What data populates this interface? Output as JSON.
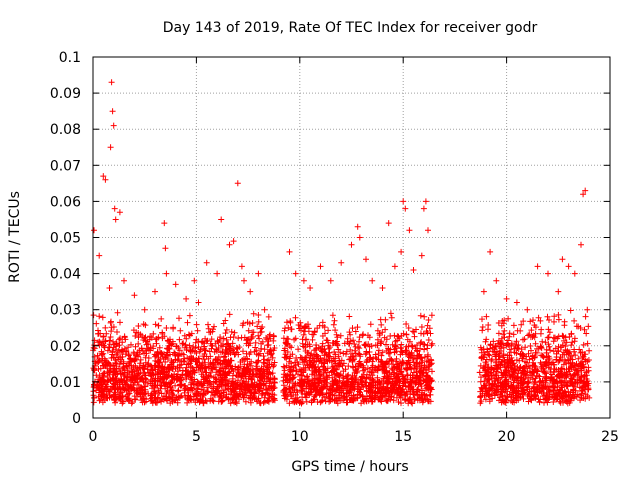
{
  "chart_data": {
    "type": "scatter",
    "title": "Day 143 of 2019, Rate Of TEC Index for receiver godr",
    "xlabel": "GPS time / hours",
    "ylabel": "ROTI / TECUs",
    "xlim": [
      0,
      25
    ],
    "ylim": [
      0,
      0.1
    ],
    "xticks": [
      0,
      5,
      10,
      15,
      20,
      25
    ],
    "xtick_labels": [
      "0",
      "5",
      "10",
      "15",
      "20",
      "25"
    ],
    "yticks": [
      0,
      0.01,
      0.02,
      0.03,
      0.04,
      0.05,
      0.06,
      0.07,
      0.08,
      0.09,
      0.1
    ],
    "ytick_labels": [
      "0",
      "0.01",
      "0.02",
      "0.03",
      "0.04",
      "0.05",
      "0.06",
      "0.07",
      "0.08",
      "0.09",
      "0.1"
    ],
    "grid": true,
    "marker": "+",
    "marker_color": "#ff0000",
    "axis_color": "#000000",
    "grid_color": "#a0a0a0",
    "observation_segments": [
      [
        0.0,
        8.8
      ],
      [
        9.2,
        16.4
      ],
      [
        18.7,
        24.0
      ]
    ],
    "dense_band": [
      0.004,
      0.03
    ],
    "series": [
      {
        "name": "ROTI",
        "x": [
          0.05,
          0.3,
          0.5,
          0.6,
          0.8,
          0.85,
          0.9,
          0.95,
          1.0,
          1.05,
          1.1,
          1.3,
          1.5,
          2.0,
          2.5,
          3.0,
          3.45,
          3.5,
          3.55,
          4.0,
          4.5,
          4.9,
          5.1,
          5.5,
          6.0,
          6.2,
          6.6,
          6.8,
          7.0,
          7.2,
          7.3,
          7.6,
          8.0,
          8.3,
          8.5,
          9.5,
          9.8,
          10.2,
          10.5,
          11.0,
          11.5,
          12.0,
          12.5,
          12.8,
          12.9,
          13.2,
          13.5,
          14.0,
          14.3,
          14.6,
          14.9,
          15.0,
          15.1,
          15.3,
          15.5,
          15.9,
          16.0,
          16.1,
          16.2,
          18.9,
          19.2,
          19.5,
          20.0,
          20.5,
          21.0,
          21.5,
          22.0,
          22.5,
          22.7,
          23.0,
          23.3,
          23.6,
          23.7,
          23.8,
          23.9
        ],
        "y": [
          0.052,
          0.045,
          0.067,
          0.066,
          0.036,
          0.075,
          0.093,
          0.085,
          0.081,
          0.058,
          0.055,
          0.057,
          0.038,
          0.034,
          0.03,
          0.035,
          0.054,
          0.047,
          0.04,
          0.037,
          0.033,
          0.038,
          0.032,
          0.043,
          0.04,
          0.055,
          0.048,
          0.049,
          0.065,
          0.042,
          0.038,
          0.035,
          0.04,
          0.03,
          0.028,
          0.046,
          0.04,
          0.038,
          0.036,
          0.042,
          0.038,
          0.043,
          0.048,
          0.053,
          0.05,
          0.044,
          0.038,
          0.036,
          0.054,
          0.042,
          0.046,
          0.06,
          0.058,
          0.052,
          0.041,
          0.045,
          0.058,
          0.06,
          0.052,
          0.035,
          0.046,
          0.038,
          0.033,
          0.032,
          0.03,
          0.042,
          0.04,
          0.035,
          0.044,
          0.042,
          0.04,
          0.048,
          0.062,
          0.063,
          0.03
        ]
      }
    ]
  }
}
